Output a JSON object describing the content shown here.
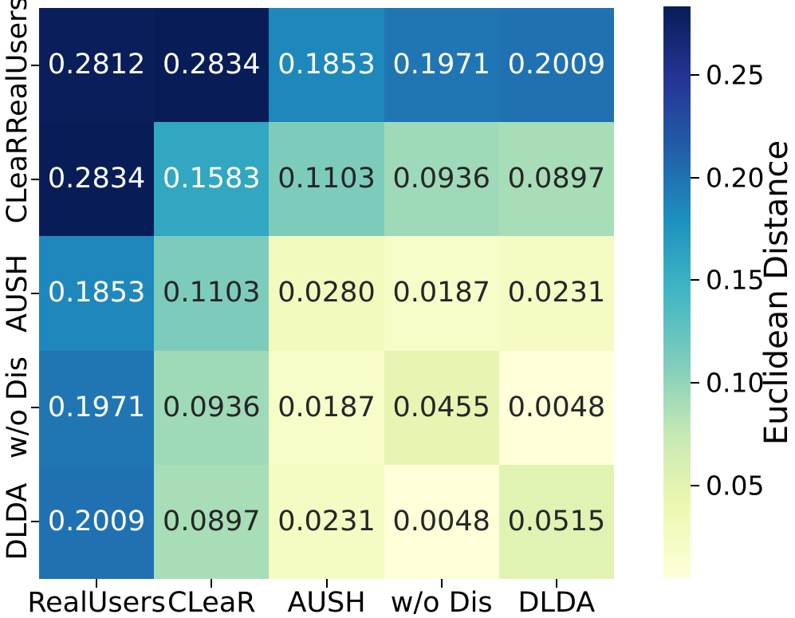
{
  "figure": {
    "background": "#ffffff"
  },
  "chart_data": {
    "type": "heatmap",
    "title": "",
    "xlabel": "",
    "ylabel": "",
    "x_categories": [
      "RealUsers",
      "CLeaR",
      "AUSH",
      "w/o Dis",
      "DLDA"
    ],
    "y_categories": [
      "RealUsers",
      "CLeaR",
      "AUSH",
      "w/o Dis",
      "DLDA"
    ],
    "values": [
      [
        0.2812,
        0.2834,
        0.1853,
        0.1971,
        0.2009
      ],
      [
        0.2834,
        0.1583,
        0.1103,
        0.0936,
        0.0897
      ],
      [
        0.1853,
        0.1103,
        0.028,
        0.0187,
        0.0231
      ],
      [
        0.1971,
        0.0936,
        0.0187,
        0.0455,
        0.0048
      ],
      [
        0.2009,
        0.0897,
        0.0231,
        0.0048,
        0.0515
      ]
    ],
    "value_format_decimals": 4,
    "vmin": 0.0048,
    "vmax": 0.2834,
    "grid": false,
    "colormap": {
      "name": "YlGnBu",
      "positions": [
        0,
        0.125,
        0.25,
        0.375,
        0.5,
        0.625,
        0.75,
        0.875,
        1.0
      ],
      "colors": [
        "#ffffd9",
        "#edf8b1",
        "#c7e9b4",
        "#7fcdbb",
        "#41b6c4",
        "#1d91c0",
        "#225ea8",
        "#253494",
        "#081d58"
      ]
    },
    "annotation_colors": {
      "dark": "#262626",
      "light": "#ffffff"
    },
    "colorbar": {
      "label": "Euclidean Distance",
      "position": "right",
      "ticks": [
        0.25,
        0.2,
        0.15,
        0.1,
        0.05
      ],
      "tick_labels": [
        "0.25",
        "0.20",
        "0.15",
        "0.10",
        "0.05"
      ]
    }
  }
}
